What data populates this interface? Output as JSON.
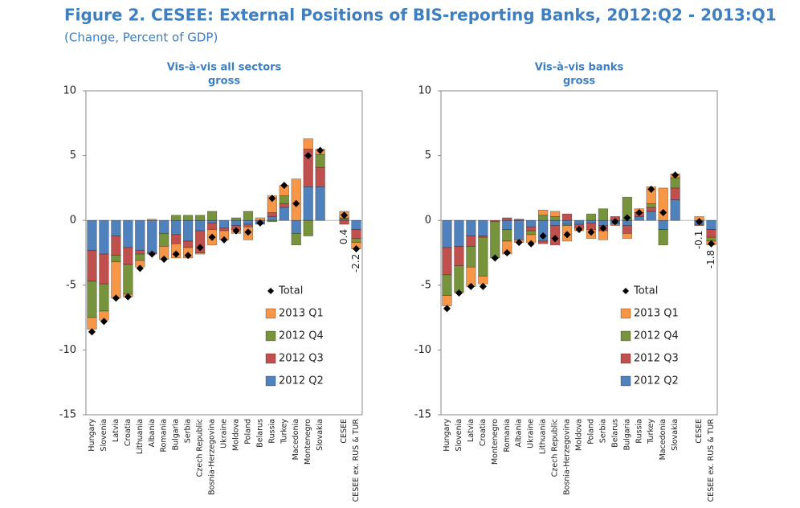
{
  "title": "Figure 2. CESEE: External Positions of BIS-reporting Banks, 2012:Q2  - 2013:Q1",
  "subtitle": "(Change, Percent of GDP)",
  "chart_data": [
    {
      "type": "bar",
      "stacked": true,
      "title": "Vis-à-vis all sectors",
      "subtitle": "gross",
      "categories": [
        "Hungary",
        "Slovenia",
        "Latvia",
        "Croatia",
        "Lithuania",
        "Albania",
        "Romania",
        "Bulgaria",
        "Serbia",
        "Czech Republic",
        "Bosnia-Herzegovina",
        "Ukraine",
        "Moldova",
        "Poland",
        "Belarus",
        "Russia",
        "Turkey",
        "Macedonia",
        "Montenegro",
        "Slovakia",
        null,
        "CESEE",
        "CESEE ex. RUS & TUR"
      ],
      "ylim": [
        -15,
        10
      ],
      "yticks": [
        10,
        5,
        0,
        -5,
        -10,
        -15
      ],
      "grid": false,
      "legend": "lower right",
      "series": [
        {
          "name": "2012 Q2",
          "color": "#4f81bd",
          "values": [
            -2.3,
            -2.6,
            -1.2,
            -2.1,
            -2.3,
            -2.5,
            -1.0,
            -1.1,
            -1.6,
            -0.8,
            -0.2,
            -0.6,
            -0.4,
            -0.3,
            -0.3,
            0.3,
            1.0,
            -1.0,
            2.6,
            2.6,
            null,
            0.1,
            -0.7
          ]
        },
        {
          "name": "2012 Q3",
          "color": "#c0504d",
          "values": [
            -2.4,
            -2.3,
            -1.5,
            -1.3,
            -0.3,
            -0.1,
            0,
            -0.7,
            -0.5,
            -1.7,
            -0.5,
            -0.2,
            -0.3,
            -0.2,
            0,
            0.3,
            0.3,
            0,
            2.9,
            1.5,
            null,
            -0.3,
            -0.7
          ]
        },
        {
          "name": "2012 Q4",
          "color": "#77933c",
          "values": [
            -2.8,
            -2.1,
            -0.5,
            -2.3,
            -0.5,
            0,
            -1.0,
            0.4,
            0.4,
            0.4,
            0.7,
            0,
            0.2,
            0.7,
            0,
            -0.1,
            0.6,
            -0.9,
            -1.2,
            1.0,
            null,
            0.1,
            -0.3
          ]
        },
        {
          "name": "2013 Q1",
          "color": "#f79646",
          "values": [
            -0.9,
            -0.7,
            -2.8,
            -0.2,
            -0.5,
            0.1,
            -1.0,
            -1.1,
            -0.8,
            -0.1,
            -1.2,
            -0.7,
            -0.3,
            -1.0,
            0.2,
            1.3,
            0.8,
            3.2,
            0.8,
            0.4,
            null,
            0.5,
            -0.5
          ]
        },
        {
          "name": "Total",
          "color": "#000000",
          "marker": "diamond",
          "values": [
            -8.6,
            -7.8,
            -6.0,
            -5.9,
            -3.7,
            -2.6,
            -3.0,
            -2.6,
            -2.7,
            -2.1,
            -1.3,
            -1.5,
            -0.8,
            -0.9,
            -0.2,
            1.7,
            2.7,
            1.3,
            5.0,
            5.4,
            null,
            0.4,
            -2.2
          ],
          "value_labels": [
            null,
            null,
            null,
            null,
            null,
            null,
            null,
            null,
            null,
            null,
            null,
            null,
            null,
            null,
            null,
            null,
            null,
            null,
            null,
            null,
            null,
            "0.4",
            "-2.2"
          ]
        }
      ]
    },
    {
      "type": "bar",
      "stacked": true,
      "title": "Vis-à-vis banks",
      "subtitle": "gross",
      "categories": [
        "Hungary",
        "Slovenia",
        "Latvia",
        "Croatia",
        "Montenegro",
        "Romania",
        "Albania",
        "Ukraine",
        "Lithuania",
        "Czech Republic",
        "Bosnia-Herzegovina",
        "Moldova",
        "Poland",
        "Serbia",
        "Belarus",
        "Bulgaria",
        "Russia",
        "Turkey",
        "Macedonia",
        "Slovakia",
        null,
        "CESEE",
        "CESEE ex. RUS & TUR"
      ],
      "ylim": [
        -15,
        10
      ],
      "yticks": [
        10,
        5,
        0,
        -5,
        -10,
        -15
      ],
      "grid": false,
      "legend": "lower right",
      "series": [
        {
          "name": "2012 Q2",
          "color": "#4f81bd",
          "values": [
            -2.1,
            -2.0,
            -1.2,
            -1.2,
            0,
            -0.7,
            -1.5,
            -0.5,
            -1.6,
            -0.4,
            -0.3,
            -0.3,
            -0.2,
            -0.4,
            -0.3,
            -0.4,
            0.3,
            0.7,
            -0.7,
            1.6,
            null,
            -0.3,
            -0.7
          ]
        },
        {
          "name": "2012 Q3",
          "color": "#c0504d",
          "values": [
            -2.1,
            -1.5,
            -0.8,
            -0.1,
            -0.1,
            0.2,
            0.1,
            -0.3,
            -0.2,
            -1.5,
            0.5,
            -0.3,
            -0.5,
            -0.4,
            0.3,
            -0.6,
            0.3,
            0.3,
            0,
            0.9,
            null,
            -0.1,
            -0.6
          ]
        },
        {
          "name": "2012 Q4",
          "color": "#77933c",
          "values": [
            -1.6,
            -2.0,
            -1.6,
            -3.0,
            -2.8,
            -0.9,
            0,
            -0.3,
            0.4,
            0.3,
            -0.1,
            0,
            0.5,
            0.9,
            0,
            1.8,
            0,
            0.3,
            -1.2,
            0.8,
            null,
            0,
            -0.3
          ]
        },
        {
          "name": "2013 Q1",
          "color": "#f79646",
          "values": [
            -0.8,
            -0.1,
            -1.5,
            -0.6,
            0,
            -1.0,
            -0.2,
            -0.6,
            0.4,
            0.4,
            -1.2,
            -0.2,
            -0.7,
            -0.7,
            -0.1,
            -0.4,
            0.3,
            1.3,
            2.5,
            0.3,
            null,
            0.3,
            -0.3
          ]
        },
        {
          "name": "Total",
          "color": "#000000",
          "marker": "diamond",
          "values": [
            -6.8,
            -5.6,
            -5.1,
            -5.1,
            -2.9,
            -2.5,
            -1.7,
            -1.8,
            -1.2,
            -1.4,
            -1.1,
            -0.7,
            -0.9,
            -0.6,
            -0.1,
            0.2,
            0.6,
            2.4,
            0.6,
            3.5,
            null,
            -0.1,
            -1.8
          ],
          "value_labels": [
            null,
            null,
            null,
            null,
            null,
            null,
            null,
            null,
            null,
            null,
            null,
            null,
            null,
            null,
            null,
            null,
            null,
            null,
            null,
            null,
            null,
            "-0.1",
            "-1.8"
          ]
        }
      ]
    }
  ]
}
